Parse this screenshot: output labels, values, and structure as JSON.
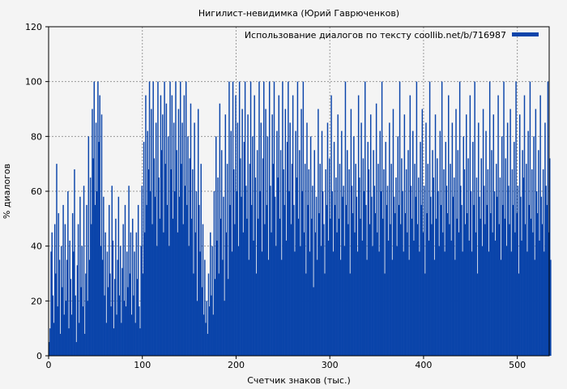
{
  "chart_data": {
    "type": "bar",
    "title": "Нигилист-невидимка (Юрий Гаврюченков)",
    "xlabel": "Счетчик знаков (тыс.)",
    "ylabel": "% диалогов",
    "xlim": [
      0,
      534
    ],
    "ylim": [
      0,
      120
    ],
    "xticks": [
      0,
      100,
      200,
      300,
      400,
      500
    ],
    "yticks": [
      0,
      20,
      40,
      60,
      80,
      100,
      120
    ],
    "grid": true,
    "legend_position": "top-right",
    "series": [
      {
        "name": "Использование диалогов по тексту coollib.net/b/716987",
        "color": "#0a44aa",
        "x_start": 0,
        "x_step": 1,
        "values": [
          5,
          10,
          38,
          45,
          22,
          12,
          48,
          30,
          70,
          18,
          52,
          35,
          8,
          40,
          25,
          55,
          15,
          48,
          20,
          35,
          60,
          10,
          42,
          28,
          15,
          52,
          38,
          68,
          22,
          5,
          33,
          48,
          12,
          58,
          25,
          40,
          18,
          62,
          8,
          30,
          55,
          20,
          80,
          35,
          65,
          48,
          90,
          72,
          100,
          55,
          85,
          60,
          100,
          78,
          95,
          40,
          88,
          35,
          58,
          22,
          45,
          12,
          38,
          25,
          55,
          30,
          18,
          62,
          42,
          10,
          28,
          50,
          15,
          35,
          58,
          22,
          40,
          12,
          32,
          48,
          20,
          55,
          18,
          38,
          25,
          62,
          30,
          45,
          15,
          50,
          22,
          38,
          12,
          45,
          28,
          55,
          18,
          10,
          40,
          62,
          30,
          78,
          45,
          95,
          55,
          82,
          68,
          100,
          60,
          90,
          48,
          100,
          72,
          58,
          85,
          40,
          100,
          65,
          50,
          95,
          75,
          88,
          45,
          100,
          70,
          92,
          55,
          80,
          40,
          100,
          68,
          95,
          50,
          85,
          60,
          100,
          75,
          45,
          90,
          58,
          100,
          70,
          85,
          48,
          95,
          62,
          100,
          55,
          80,
          40,
          72,
          92,
          50,
          68,
          30,
          85,
          45,
          60,
          20,
          90,
          55,
          38,
          70,
          25,
          48,
          15,
          35,
          12,
          20,
          8,
          30,
          18,
          45,
          22,
          40,
          15,
          60,
          28,
          80,
          42,
          65,
          30,
          92,
          50,
          75,
          35,
          58,
          20,
          88,
          45,
          70,
          28,
          100,
          55,
          82,
          38,
          100,
          68,
          48,
          95,
          60,
          85,
          40,
          100,
          72,
          58,
          90,
          45,
          78,
          100,
          62,
          50,
          88,
          35,
          70,
          100,
          55,
          80,
          42,
          95,
          65,
          30,
          75,
          50,
          100,
          60,
          85,
          38,
          72,
          100,
          48,
          90,
          55,
          80,
          35,
          100,
          62,
          45,
          88,
          70,
          100,
          58,
          40,
          82,
          65,
          95,
          50,
          75,
          35,
          100,
          68,
          55,
          90,
          42,
          78,
          100,
          60,
          85,
          48,
          70,
          95,
          55,
          38,
          82,
          65,
          100,
          50,
          75,
          40,
          90,
          60,
          100,
          45,
          70,
          30,
          85,
          55,
          68,
          38,
          80,
          50,
          62,
          25,
          75,
          45,
          58,
          35,
          90,
          52,
          70,
          40,
          82,
          60,
          48,
          30,
          68,
          55,
          85,
          42,
          72,
          50,
          95,
          60,
          38,
          78,
          55,
          65,
          45,
          88,
          50,
          70,
          35,
          82,
          58,
          62,
          40,
          100,
          55,
          75,
          48,
          68,
          30,
          90,
          62,
          52,
          80,
          45,
          70,
          58,
          38,
          95,
          65,
          50,
          85,
          42,
          72,
          60,
          100,
          55,
          35,
          78,
          68,
          48,
          88,
          58,
          40,
          75,
          62,
          52,
          92,
          45,
          70,
          38,
          82,
          60,
          100,
          50,
          68,
          30,
          78,
          55,
          62,
          42,
          85,
          48,
          70,
          35,
          90,
          58,
          52,
          65,
          40,
          80,
          55,
          100,
          48,
          72,
          60,
          38,
          88,
          52,
          68,
          45,
          75,
          35,
          95,
          62,
          50,
          82,
          42,
          70,
          58,
          100,
          48,
          65,
          38,
          78,
          55,
          90,
          45,
          62,
          30,
          85,
          52,
          70,
          42,
          100,
          58,
          48,
          75,
          65,
          35,
          88,
          50,
          72,
          60,
          40,
          82,
          55,
          100,
          45,
          68,
          38,
          78,
          62,
          52,
          95,
          48,
          70,
          42,
          85,
          58,
          65,
          35,
          90,
          50,
          75,
          45,
          100,
          62,
          55,
          38,
          80,
          68,
          48,
          88,
          52,
          72,
          42,
          95,
          60,
          38,
          78,
          55,
          100,
          45,
          65,
          30,
          85,
          58,
          50,
          72,
          40,
          90,
          62,
          48,
          82,
          55,
          68,
          38,
          100,
          52,
          75,
          45,
          88,
          60,
          42,
          70,
          58,
          95,
          48,
          65,
          35,
          80,
          55,
          100,
          50,
          72,
          40,
          85,
          62,
          48,
          90,
          38,
          68,
          55,
          78,
          45,
          100,
          52,
          62,
          30,
          88,
          58,
          42,
          75,
          65,
          95,
          48,
          70,
          38,
          82,
          55,
          100,
          50,
          68,
          45,
          80,
          35,
          90,
          60,
          52,
          75,
          42,
          95,
          58,
          48,
          68,
          38,
          85,
          62,
          55,
          100,
          45,
          72,
          35
        ]
      }
    ]
  }
}
